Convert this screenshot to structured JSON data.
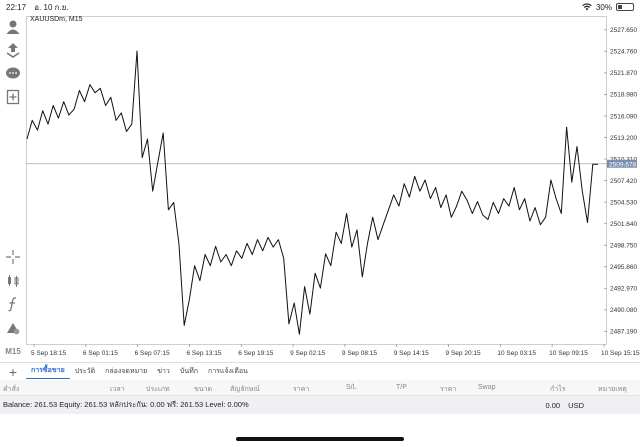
{
  "status_bar": {
    "time": "22:17",
    "date": "อ. 10 ก.ย.",
    "battery_percent": "30%",
    "battery_level": 0.3,
    "wifi_icon": "wifi-icon"
  },
  "chart": {
    "symbol": "XAUUSDm, M15",
    "current_price": "2509.678",
    "price_ticks": [
      "2527.650",
      "2524.760",
      "2521.870",
      "2518.980",
      "2516.090",
      "2513.200",
      "2510.310",
      "2507.420",
      "2504.530",
      "2501.640",
      "2498.750",
      "2495.860",
      "2492.970",
      "2490.080",
      "2487.190"
    ],
    "time_ticks": [
      "5 Sep 18:15",
      "6 Sep 01:15",
      "6 Sep 07:15",
      "6 Sep 13:15",
      "6 Sep 19:15",
      "9 Sep 02:15",
      "9 Sep 08:15",
      "9 Sep 14:15",
      "9 Sep 20:15",
      "10 Sep 03:15",
      "10 Sep 09:15",
      "10 Sep 15:15"
    ]
  },
  "chart_data": {
    "type": "line",
    "title": "XAUUSDm, M15",
    "ylim": [
      2485.5,
      2529.5
    ],
    "y": [
      2513.0,
      2515.5,
      2514.2,
      2516.8,
      2515.0,
      2517.5,
      2515.8,
      2518.0,
      2516.2,
      2517.0,
      2519.5,
      2518.0,
      2520.3,
      2519.2,
      2519.8,
      2517.5,
      2518.6,
      2515.5,
      2516.5,
      2514.0,
      2515.0,
      2524.8,
      2510.5,
      2513.0,
      2506.0,
      2510.0,
      2513.8,
      2503.5,
      2504.5,
      2499.0,
      2488.0,
      2491.5,
      2496.0,
      2494.0,
      2497.5,
      2496.0,
      2498.6,
      2496.5,
      2497.5,
      2496.0,
      2498.0,
      2497.0,
      2499.0,
      2497.5,
      2499.5,
      2498.0,
      2499.8,
      2498.5,
      2499.5,
      2497.0,
      2488.2,
      2491.0,
      2486.8,
      2493.2,
      2489.5,
      2495.0,
      2493.0,
      2497.6,
      2496.0,
      2500.5,
      2499.0,
      2503.0,
      2498.5,
      2500.8,
      2494.5,
      2499.0,
      2502.5,
      2499.5,
      2501.5,
      2503.5,
      2505.5,
      2504.0,
      2507.0,
      2505.2,
      2508.0,
      2506.0,
      2507.5,
      2505.0,
      2506.5,
      2503.8,
      2505.5,
      2502.5,
      2504.0,
      2506.0,
      2504.8,
      2503.0,
      2504.6,
      2502.8,
      2502.2,
      2504.5,
      2503.0,
      2505.0,
      2504.0,
      2506.5,
      2503.5,
      2505.0,
      2502.0,
      2503.8,
      2501.5,
      2502.5,
      2507.5,
      2505.0,
      2503.0,
      2514.6,
      2507.2,
      2512.0,
      2506.0,
      2501.8,
      2509.6,
      2509.6
    ]
  },
  "tabs": [
    "การซื้อขาย",
    "ประวัติ",
    "กล่องจดหมาย",
    "ข่าว",
    "บันทึก",
    "การแจ้งเตือน"
  ],
  "table_headers": [
    "คำสั่ง",
    "เวลา",
    "ประเภท",
    "ขนาด",
    "สัญลักษณ์",
    "ราคา",
    "S/L",
    "T/P",
    "ราคา",
    "Swap",
    "กำไร",
    "หมายเหตุ"
  ],
  "balance_line": "Balance: 261.53 Equity: 261.53 หลักประกัน: 0.00 ฟรี: 261.53 Level: 0.00%",
  "profit_total": "0.00",
  "currency": "USD",
  "toolbar_icons": [
    "account-icon",
    "trade-icon",
    "chat-icon",
    "new-order-icon",
    "crosshair-icon",
    "candles-icon",
    "function-icon",
    "objects-icon"
  ],
  "timeframe": "M15"
}
